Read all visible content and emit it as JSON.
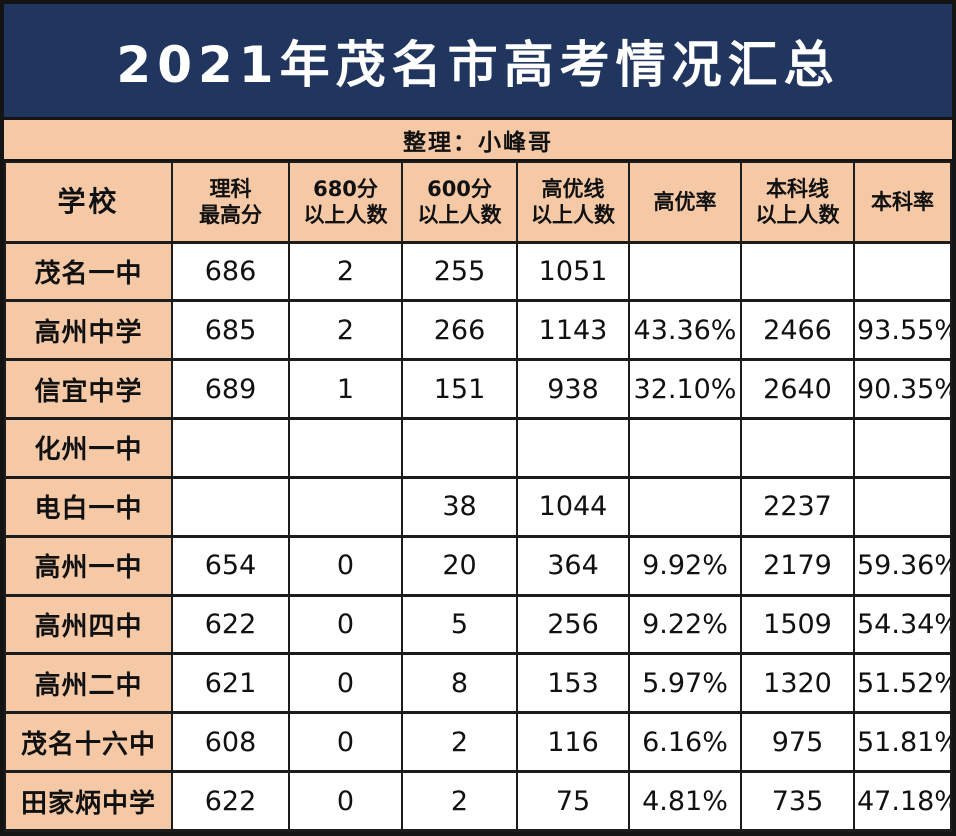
{
  "title": "2021年茂名市高考情况汇总",
  "subtitle": "整理：小峰哥",
  "colors": {
    "title_background": "#21365e",
    "title_text": "#ffffff",
    "accent_background": "#f6c9a6",
    "cell_background": "#ffffff",
    "border": "#1c1c1c",
    "text": "#111111"
  },
  "table": {
    "header": [
      "学校",
      "理科\n最高分",
      "680分\n以上人数",
      "600分\n以上人数",
      "高优线\n以上人数",
      "高优率",
      "本科线\n以上人数",
      "本科率"
    ],
    "rows": [
      [
        "茂名一中",
        "686",
        "2",
        "255",
        "1051",
        "",
        "",
        ""
      ],
      [
        "高州中学",
        "685",
        "2",
        "266",
        "1143",
        "43.36%",
        "2466",
        "93.55%"
      ],
      [
        "信宜中学",
        "689",
        "1",
        "151",
        "938",
        "32.10%",
        "2640",
        "90.35%"
      ],
      [
        "化州一中",
        "",
        "",
        "",
        "",
        "",
        "",
        ""
      ],
      [
        "电白一中",
        "",
        "",
        "38",
        "1044",
        "",
        "2237",
        ""
      ],
      [
        "高州一中",
        "654",
        "0",
        "20",
        "364",
        "9.92%",
        "2179",
        "59.36%"
      ],
      [
        "高州四中",
        "622",
        "0",
        "5",
        "256",
        "9.22%",
        "1509",
        "54.34%"
      ],
      [
        "高州二中",
        "621",
        "0",
        "8",
        "153",
        "5.97%",
        "1320",
        "51.52%"
      ],
      [
        "茂名十六中",
        "608",
        "0",
        "2",
        "116",
        "6.16%",
        "975",
        "51.81%"
      ],
      [
        "田家炳中学",
        "622",
        "0",
        "2",
        "75",
        "4.81%",
        "735",
        "47.18%"
      ]
    ]
  },
  "chart_data": {
    "type": "table",
    "title": "2021年茂名市高考情况汇总",
    "subtitle": "整理：小峰哥",
    "columns": [
      "学校",
      "理科最高分",
      "680分以上人数",
      "600分以上人数",
      "高优线以上人数",
      "高优率",
      "本科线以上人数",
      "本科率"
    ],
    "rows": [
      {
        "学校": "茂名一中",
        "理科最高分": 686,
        "680分以上人数": 2,
        "600分以上人数": 255,
        "高优线以上人数": 1051,
        "高优率": null,
        "本科线以上人数": null,
        "本科率": null
      },
      {
        "学校": "高州中学",
        "理科最高分": 685,
        "680分以上人数": 2,
        "600分以上人数": 266,
        "高优线以上人数": 1143,
        "高优率": "43.36%",
        "本科线以上人数": 2466,
        "本科率": "93.55%"
      },
      {
        "学校": "信宜中学",
        "理科最高分": 689,
        "680分以上人数": 1,
        "600分以上人数": 151,
        "高优线以上人数": 938,
        "高优率": "32.10%",
        "本科线以上人数": 2640,
        "本科率": "90.35%"
      },
      {
        "学校": "化州一中",
        "理科最高分": null,
        "680分以上人数": null,
        "600分以上人数": null,
        "高优线以上人数": null,
        "高优率": null,
        "本科线以上人数": null,
        "本科率": null
      },
      {
        "学校": "电白一中",
        "理科最高分": null,
        "680分以上人数": null,
        "600分以上人数": 38,
        "高优线以上人数": 1044,
        "高优率": null,
        "本科线以上人数": 2237,
        "本科率": null
      },
      {
        "学校": "高州一中",
        "理科最高分": 654,
        "680分以上人数": 0,
        "600分以上人数": 20,
        "高优线以上人数": 364,
        "高优率": "9.92%",
        "本科线以上人数": 2179,
        "本科率": "59.36%"
      },
      {
        "学校": "高州四中",
        "理科最高分": 622,
        "680分以上人数": 0,
        "600分以上人数": 5,
        "高优线以上人数": 256,
        "高优率": "9.22%",
        "本科线以上人数": 1509,
        "本科率": "54.34%"
      },
      {
        "学校": "高州二中",
        "理科最高分": 621,
        "680分以上人数": 0,
        "600分以上人数": 8,
        "高优线以上人数": 153,
        "高优率": "5.97%",
        "本科线以上人数": 1320,
        "本科率": "51.52%"
      },
      {
        "学校": "茂名十六中",
        "理科最高分": 608,
        "680分以上人数": 0,
        "600分以上人数": 2,
        "高优线以上人数": 116,
        "高优率": "6.16%",
        "本科线以上人数": 975,
        "本科率": "51.81%"
      },
      {
        "学校": "田家炳中学",
        "理科最高分": 622,
        "680分以上人数": 0,
        "600分以上人数": 2,
        "高优线以上人数": 75,
        "高优率": "4.81%",
        "本科线以上人数": 735,
        "本科率": "47.18%"
      }
    ]
  }
}
